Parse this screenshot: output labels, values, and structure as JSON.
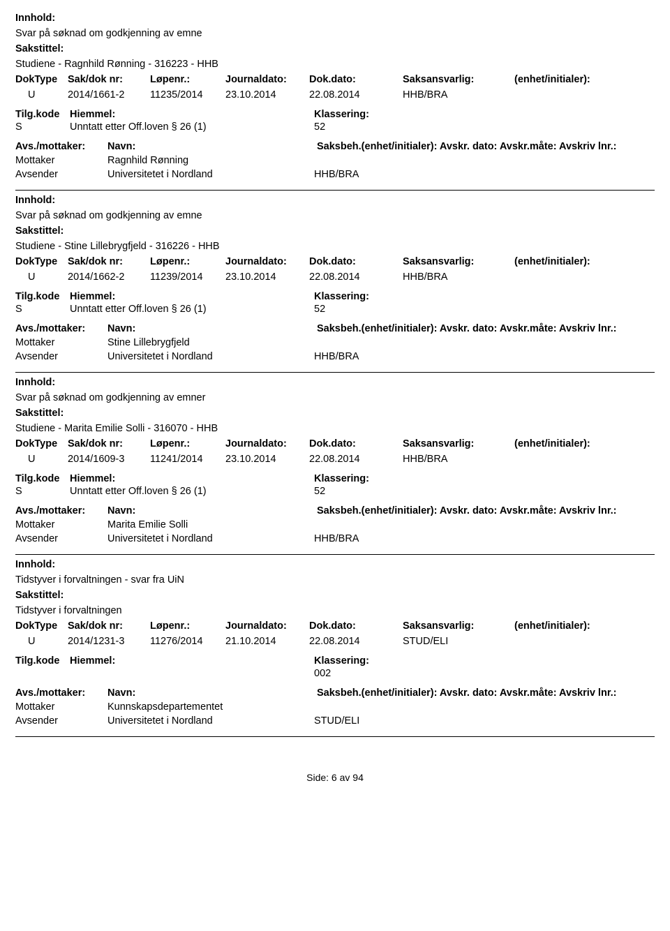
{
  "labels": {
    "innhold": "Innhold:",
    "sakstittel": "Sakstittel:",
    "doktype": "DokType",
    "sakdok": "Sak/dok nr:",
    "lopenr": "Løpenr.:",
    "journaldato": "Journaldato:",
    "dokdato": "Dok.dato:",
    "saksansvarlig": "Saksansvarlig:",
    "enhet": "(enhet/initialer):",
    "tilgkode": "Tilg.kode",
    "hiemmel": "Hiemmel:",
    "klassering": "Klassering:",
    "avsmottaker": "Avs./mottaker:",
    "navn": "Navn:",
    "saksbeh_line": "Saksbeh.(enhet/initialer): Avskr. dato:  Avskr.måte:  Avskriv lnr.:"
  },
  "records": [
    {
      "innhold": "Svar på søknad om godkjenning av emne",
      "sakstittel": "Studiene - Ragnhild Rønning - 316223 - HHB",
      "doktype": "U",
      "sakdok": "2014/1661-2",
      "lopenr": "11235/2014",
      "journaldato": "23.10.2014",
      "dokdato": "22.08.2014",
      "saksansvarlig": "HHB/BRA",
      "tilg": "S",
      "hiemmel": "Unntatt etter Off.loven § 26 (1)",
      "klassering": "52",
      "parties": [
        {
          "role": "Mottaker",
          "name": "Ragnhild Rønning",
          "unit": ""
        },
        {
          "role": "Avsender",
          "name": "Universitetet i Nordland",
          "unit": "HHB/BRA"
        }
      ]
    },
    {
      "innhold": "Svar på søknad om godkjenning av emne",
      "sakstittel": "Studiene - Stine Lillebrygfjeld - 316226 - HHB",
      "doktype": "U",
      "sakdok": "2014/1662-2",
      "lopenr": "11239/2014",
      "journaldato": "23.10.2014",
      "dokdato": "22.08.2014",
      "saksansvarlig": "HHB/BRA",
      "tilg": "S",
      "hiemmel": "Unntatt etter Off.loven § 26 (1)",
      "klassering": "52",
      "parties": [
        {
          "role": "Mottaker",
          "name": "Stine Lillebrygfjeld",
          "unit": ""
        },
        {
          "role": "Avsender",
          "name": "Universitetet i Nordland",
          "unit": "HHB/BRA"
        }
      ]
    },
    {
      "innhold": "Svar på søknad om godkjenning av emner",
      "sakstittel": "Studiene - Marita Emilie Solli  - 316070 - HHB",
      "doktype": "U",
      "sakdok": "2014/1609-3",
      "lopenr": "11241/2014",
      "journaldato": "23.10.2014",
      "dokdato": "22.08.2014",
      "saksansvarlig": "HHB/BRA",
      "tilg": "S",
      "hiemmel": "Unntatt etter Off.loven § 26 (1)",
      "klassering": "52",
      "parties": [
        {
          "role": "Mottaker",
          "name": "Marita Emilie Solli",
          "unit": ""
        },
        {
          "role": "Avsender",
          "name": "Universitetet i Nordland",
          "unit": "HHB/BRA"
        }
      ]
    },
    {
      "innhold": "Tidstyver i forvaltningen - svar fra UiN",
      "sakstittel": "Tidstyver i forvaltningen",
      "doktype": "U",
      "sakdok": "2014/1231-3",
      "lopenr": "11276/2014",
      "journaldato": "21.10.2014",
      "dokdato": "22.08.2014",
      "saksansvarlig": "STUD/ELI",
      "tilg": "",
      "hiemmel": "",
      "klassering": "002",
      "parties": [
        {
          "role": "Mottaker",
          "name": "Kunnskapsdepartementet",
          "unit": ""
        },
        {
          "role": "Avsender",
          "name": "Universitetet i Nordland",
          "unit": "STUD/ELI"
        }
      ]
    }
  ],
  "footer": "Side: 6 av 94"
}
